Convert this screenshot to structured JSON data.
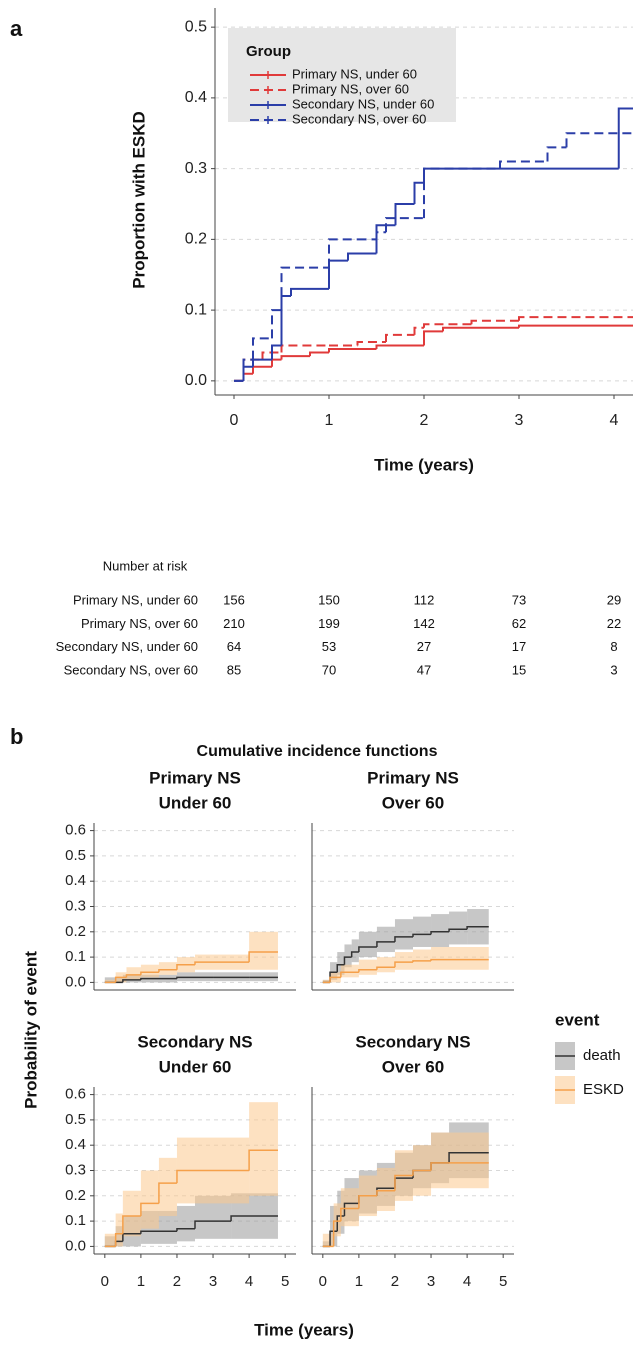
{
  "panel_labels": [
    "a",
    "b"
  ],
  "chart_data": [
    {
      "type": "step",
      "xlabel": "Time (years)",
      "ylabel": "Proportion with ESKD",
      "xlim": [
        -0.2,
        4.2
      ],
      "ylim": [
        -0.02,
        0.52
      ],
      "xticks": [
        0,
        1,
        2,
        3,
        4
      ],
      "yticks": [
        {
          "value": 0,
          "label": "0.0"
        },
        0.1,
        0.2,
        0.3,
        0.4,
        0.5
      ],
      "grid": true,
      "legend": "upper left",
      "legend_title": "Group",
      "series": [
        {
          "name": "Primary NS, under 60",
          "color": "#e03a3a",
          "linestyle": "solid",
          "x": [
            0,
            0.1,
            0.2,
            0.4,
            0.5,
            0.8,
            1.0,
            1.5,
            1.8,
            2.0,
            2.2,
            3.0,
            4.2
          ],
          "values": [
            0,
            0.01,
            0.02,
            0.03,
            0.035,
            0.04,
            0.045,
            0.05,
            0.05,
            0.07,
            0.075,
            0.078,
            0.078
          ]
        },
        {
          "name": "Primary NS, over 60",
          "color": "#e03a3a",
          "linestyle": "dashed",
          "x": [
            0,
            0.1,
            0.3,
            0.5,
            1.0,
            1.3,
            1.6,
            1.9,
            2.0,
            2.5,
            3.0,
            4.2
          ],
          "values": [
            0,
            0.03,
            0.04,
            0.05,
            0.05,
            0.055,
            0.065,
            0.075,
            0.08,
            0.085,
            0.09,
            0.09
          ]
        },
        {
          "name": "Secondary NS, under 60",
          "color": "#2b3ea8",
          "linestyle": "solid",
          "x": [
            0,
            0.1,
            0.2,
            0.4,
            0.5,
            0.6,
            1.0,
            1.2,
            1.5,
            1.7,
            1.9,
            2.0,
            4.0,
            4.05,
            4.2
          ],
          "values": [
            0,
            0.02,
            0.03,
            0.05,
            0.12,
            0.13,
            0.17,
            0.18,
            0.22,
            0.25,
            0.28,
            0.3,
            0.3,
            0.385,
            0.385
          ]
        },
        {
          "name": "Secondary NS, over 60",
          "color": "#2b3ea8",
          "linestyle": "dashed",
          "x": [
            0,
            0.1,
            0.2,
            0.4,
            0.5,
            1.0,
            1.3,
            1.5,
            1.6,
            2.0,
            2.8,
            3.3,
            3.5,
            4.2
          ],
          "values": [
            0,
            0.03,
            0.06,
            0.1,
            0.16,
            0.2,
            0.2,
            0.21,
            0.23,
            0.3,
            0.31,
            0.33,
            0.35,
            0.35
          ]
        }
      ],
      "risk_table": {
        "title": "Number at risk",
        "rows": [
          {
            "name": "Primary NS, under 60",
            "values": [
              156,
              150,
              112,
              73,
              29
            ]
          },
          {
            "name": "Primary NS, over 60",
            "values": [
              210,
              199,
              142,
              62,
              22
            ]
          },
          {
            "name": "Secondary NS, under 60",
            "values": [
              64,
              53,
              27,
              17,
              8
            ]
          },
          {
            "name": "Secondary NS, over 60",
            "values": [
              85,
              70,
              47,
              15,
              3
            ]
          }
        ]
      }
    },
    {
      "type": "cif",
      "title": "Cumulative incidence functions",
      "xlabel": "Time (years)",
      "ylabel": "Probability of event",
      "legend_title": "event",
      "legend": "right",
      "grid": true,
      "xlim": [
        -0.3,
        5.3
      ],
      "ylim": [
        -0.03,
        0.63
      ],
      "xticks": [
        0,
        1,
        2,
        3,
        4,
        5
      ],
      "yticks": [
        {
          "value": 0,
          "label": "0.0"
        },
        0.1,
        0.2,
        0.3,
        0.4,
        0.5,
        0.6
      ],
      "panels": [
        {
          "title": [
            "Primary NS",
            "Under 60"
          ],
          "series": [
            {
              "name": "death",
              "color": "#333333",
              "fill": "#999999",
              "x": [
                0,
                0.5,
                1,
                2,
                3,
                4,
                4.8
              ],
              "values": [
                0,
                0.01,
                0.015,
                0.02,
                0.02,
                0.02,
                0.02
              ],
              "lower": [
                0,
                0,
                0,
                0.005,
                0.005,
                0.005,
                0.005
              ],
              "upper": [
                0.02,
                0.03,
                0.03,
                0.04,
                0.04,
                0.04,
                0.04
              ]
            },
            {
              "name": "ESKD",
              "color": "#f5a04a",
              "fill": "#fbc98e",
              "x": [
                0,
                0.3,
                0.6,
                1,
                1.5,
                2,
                2.5,
                4,
                4.8
              ],
              "values": [
                0,
                0.02,
                0.03,
                0.04,
                0.05,
                0.07,
                0.08,
                0.12,
                0.12
              ],
              "lower": [
                0,
                0,
                0.01,
                0.02,
                0.03,
                0.04,
                0.05,
                0.05,
                0.05
              ],
              "upper": [
                0.01,
                0.04,
                0.06,
                0.07,
                0.08,
                0.1,
                0.11,
                0.2,
                0.2
              ]
            }
          ]
        },
        {
          "title": [
            "Primary NS",
            "Over 60"
          ],
          "series": [
            {
              "name": "death",
              "color": "#333333",
              "fill": "#999999",
              "x": [
                0,
                0.2,
                0.4,
                0.6,
                0.8,
                1,
                1.5,
                2,
                2.5,
                3,
                3.5,
                4,
                4.6
              ],
              "values": [
                0,
                0.04,
                0.07,
                0.1,
                0.12,
                0.14,
                0.16,
                0.18,
                0.19,
                0.2,
                0.21,
                0.22,
                0.22
              ],
              "lower": [
                0,
                0.01,
                0.03,
                0.06,
                0.08,
                0.1,
                0.12,
                0.13,
                0.14,
                0.14,
                0.15,
                0.15,
                0.15
              ],
              "upper": [
                0.01,
                0.08,
                0.12,
                0.15,
                0.17,
                0.2,
                0.22,
                0.25,
                0.26,
                0.27,
                0.28,
                0.29,
                0.29
              ]
            },
            {
              "name": "ESKD",
              "color": "#f5a04a",
              "fill": "#fbc98e",
              "x": [
                0,
                0.2,
                0.5,
                1,
                1.5,
                2,
                2.5,
                3,
                4.6
              ],
              "values": [
                0,
                0.02,
                0.04,
                0.05,
                0.06,
                0.08,
                0.085,
                0.09,
                0.09
              ],
              "lower": [
                0,
                0,
                0.02,
                0.03,
                0.04,
                0.05,
                0.05,
                0.05,
                0.05
              ],
              "upper": [
                0.01,
                0.04,
                0.07,
                0.09,
                0.1,
                0.12,
                0.13,
                0.14,
                0.14
              ]
            }
          ]
        },
        {
          "title": [
            "Secondary NS",
            "Under 60"
          ],
          "series": [
            {
              "name": "death",
              "color": "#333333",
              "fill": "#999999",
              "x": [
                0,
                0.3,
                0.5,
                1,
                2,
                2.5,
                3.5,
                4.8
              ],
              "values": [
                0,
                0.02,
                0.05,
                0.06,
                0.07,
                0.1,
                0.12,
                0.12
              ],
              "lower": [
                0,
                0,
                0,
                0.01,
                0.02,
                0.03,
                0.03,
                0.03
              ],
              "upper": [
                0.04,
                0.08,
                0.12,
                0.14,
                0.16,
                0.2,
                0.21,
                0.21
              ]
            },
            {
              "name": "ESKD",
              "color": "#f5a04a",
              "fill": "#fbc98e",
              "x": [
                0,
                0.3,
                0.5,
                1,
                1.5,
                2,
                4,
                4.8
              ],
              "values": [
                0,
                0.05,
                0.12,
                0.17,
                0.25,
                0.3,
                0.38,
                0.38
              ],
              "lower": [
                0,
                0,
                0.04,
                0.07,
                0.12,
                0.17,
                0.2,
                0.2
              ],
              "upper": [
                0.05,
                0.13,
                0.22,
                0.3,
                0.35,
                0.43,
                0.57,
                0.57
              ]
            }
          ]
        },
        {
          "title": [
            "Secondary NS",
            "Over 60"
          ],
          "series": [
            {
              "name": "death",
              "color": "#333333",
              "fill": "#999999",
              "x": [
                0,
                0.2,
                0.4,
                0.6,
                1,
                1.5,
                2,
                2.5,
                3,
                3.5,
                4.6
              ],
              "values": [
                0,
                0.06,
                0.12,
                0.17,
                0.2,
                0.23,
                0.27,
                0.3,
                0.33,
                0.37,
                0.37
              ],
              "lower": [
                0,
                0,
                0.05,
                0.1,
                0.13,
                0.16,
                0.2,
                0.23,
                0.25,
                0.27,
                0.27
              ],
              "upper": [
                0.02,
                0.16,
                0.22,
                0.27,
                0.3,
                0.33,
                0.37,
                0.4,
                0.45,
                0.49,
                0.49
              ]
            },
            {
              "name": "ESKD",
              "color": "#f5a04a",
              "fill": "#fbc98e",
              "x": [
                0,
                0.3,
                0.5,
                1,
                1.5,
                2,
                2.5,
                3,
                4.6
              ],
              "values": [
                0,
                0.1,
                0.15,
                0.2,
                0.22,
                0.28,
                0.3,
                0.33,
                0.33
              ],
              "lower": [
                0,
                0.04,
                0.08,
                0.12,
                0.14,
                0.18,
                0.2,
                0.23,
                0.23
              ],
              "upper": [
                0.05,
                0.17,
                0.23,
                0.28,
                0.31,
                0.38,
                0.4,
                0.45,
                0.45
              ]
            }
          ]
        }
      ]
    }
  ]
}
